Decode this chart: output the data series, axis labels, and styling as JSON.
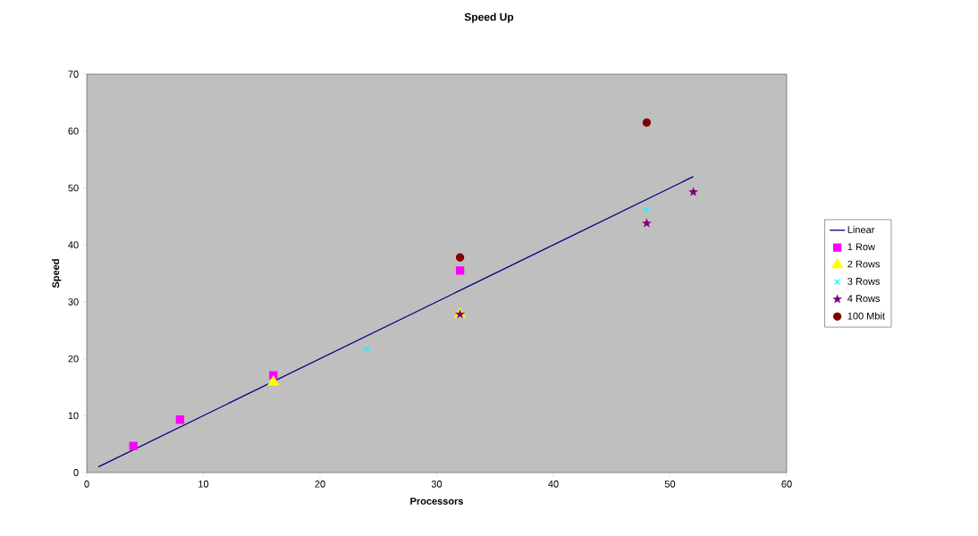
{
  "chart_data": {
    "type": "scatter",
    "title": "Speed Up",
    "xlabel": "Processors",
    "ylabel": "Speed",
    "xlim": [
      0,
      60
    ],
    "ylim": [
      0,
      70
    ],
    "xticks": [
      0,
      10,
      20,
      30,
      40,
      50,
      60
    ],
    "yticks": [
      0,
      10,
      20,
      30,
      40,
      50,
      60,
      70
    ],
    "grid": false,
    "legend": "right",
    "series": [
      {
        "name": "Linear",
        "type": "line",
        "color": "#000080",
        "marker": "none",
        "line_style": "solid",
        "x": [
          1,
          52
        ],
        "values": [
          1,
          52
        ]
      },
      {
        "name": "1 Row",
        "color": "#ff00ff",
        "marker": "square",
        "x": [
          4,
          8,
          16,
          32
        ],
        "values": [
          4.7,
          9.3,
          17.1,
          35.5
        ]
      },
      {
        "name": "2 Rows",
        "color": "#ffff00",
        "marker": "triangle",
        "x": [
          16,
          32
        ],
        "values": [
          15.9,
          27.8
        ]
      },
      {
        "name": "3 Rows",
        "color": "#00ffff",
        "marker": "cross",
        "x": [
          24,
          48
        ],
        "values": [
          21.7,
          46.2
        ]
      },
      {
        "name": "4 Rows",
        "color": "#800080",
        "marker": "star",
        "x": [
          32,
          48,
          52
        ],
        "values": [
          27.8,
          43.8,
          49.3
        ]
      },
      {
        "name": "100 Mbit",
        "color": "#800000",
        "marker": "circle",
        "x": [
          32,
          48
        ],
        "values": [
          37.8,
          61.5
        ]
      }
    ]
  }
}
